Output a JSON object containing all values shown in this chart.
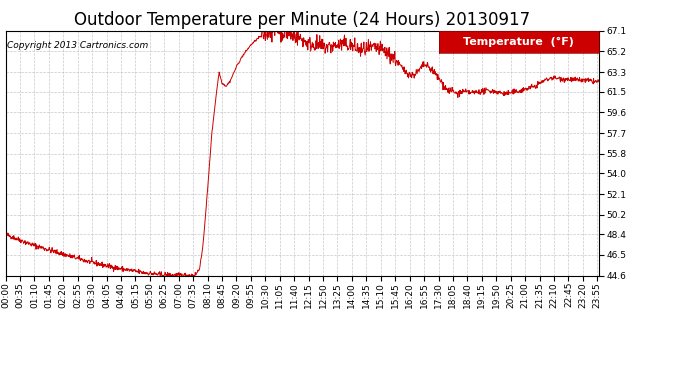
{
  "title": "Outdoor Temperature per Minute (24 Hours) 20130917",
  "copyright_text": "Copyright 2013 Cartronics.com",
  "legend_label": "Temperature  (°F)",
  "legend_bg": "#cc0000",
  "legend_text_color": "#ffffff",
  "line_color": "#cc0000",
  "bg_color": "#ffffff",
  "plot_bg_color": "#ffffff",
  "grid_color": "#bbbbbb",
  "yticks": [
    44.6,
    46.5,
    48.4,
    50.2,
    52.1,
    54.0,
    55.8,
    57.7,
    59.6,
    61.5,
    63.3,
    65.2,
    67.1
  ],
  "ylim": [
    44.6,
    67.1
  ],
  "xtick_labels": [
    "00:00",
    "00:35",
    "01:10",
    "01:45",
    "02:20",
    "02:55",
    "03:30",
    "04:05",
    "04:40",
    "05:15",
    "05:50",
    "06:25",
    "07:00",
    "07:35",
    "08:10",
    "08:45",
    "09:20",
    "09:55",
    "10:30",
    "11:05",
    "11:40",
    "12:15",
    "12:50",
    "13:25",
    "14:00",
    "14:35",
    "15:10",
    "15:45",
    "16:20",
    "16:55",
    "17:30",
    "18:05",
    "18:40",
    "19:15",
    "19:50",
    "20:25",
    "21:00",
    "21:35",
    "22:10",
    "22:45",
    "23:20",
    "23:55"
  ],
  "title_fontsize": 12,
  "tick_fontsize": 6.5,
  "copyright_fontsize": 6.5,
  "legend_fontsize": 8
}
